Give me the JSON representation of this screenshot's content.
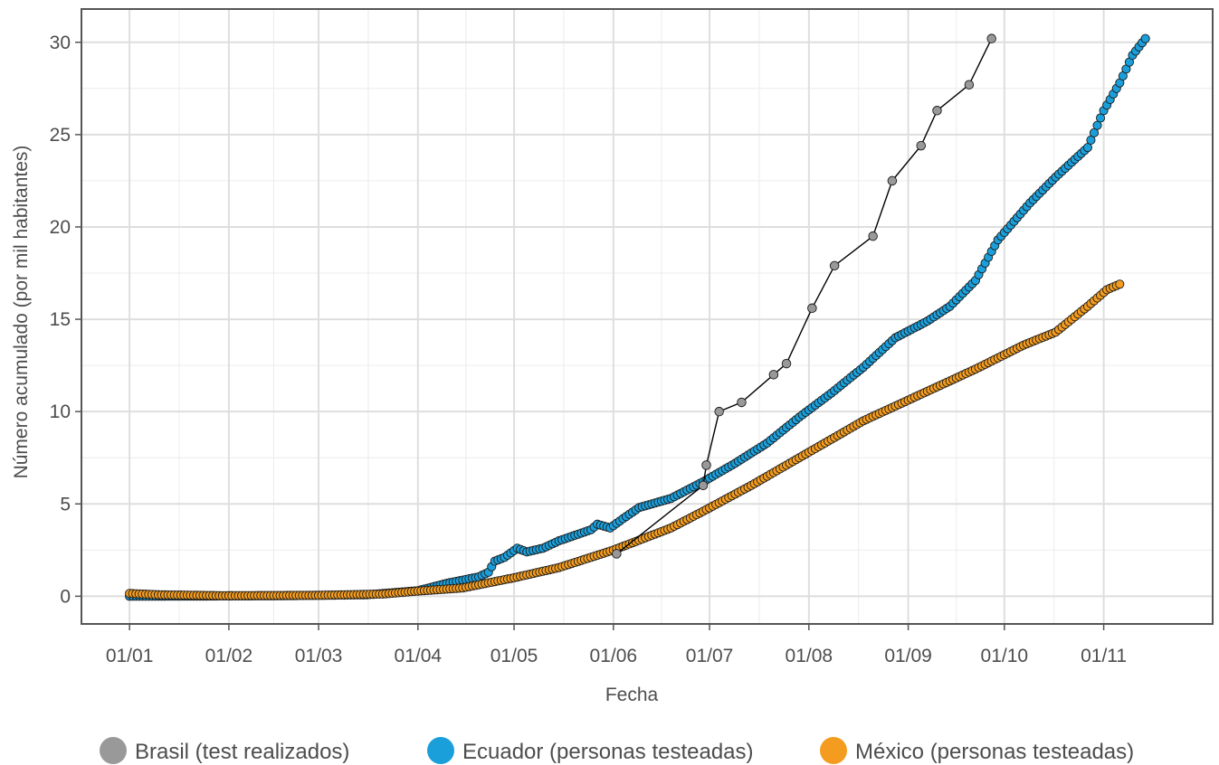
{
  "chart_data": {
    "type": "line",
    "xlabel": "Fecha",
    "ylabel": "Número acumulado (por mil habitantes)",
    "x_tick_labels": [
      "01/01",
      "01/02",
      "01/03",
      "01/04",
      "01/05",
      "01/06",
      "01/07",
      "01/08",
      "01/09",
      "01/10",
      "01/11"
    ],
    "x_tick_days": [
      1,
      32,
      60,
      91,
      121,
      152,
      182,
      213,
      244,
      274,
      305
    ],
    "x_unit": "day of year (2020)",
    "xlim": [
      -14,
      339
    ],
    "y_ticks": [
      0,
      5,
      10,
      15,
      20,
      25,
      30
    ],
    "y_tick_labels": [
      "0",
      "5",
      "10",
      "15",
      "20",
      "25",
      "30"
    ],
    "ylim": [
      -1.5,
      31.8
    ],
    "grid": true,
    "legend_position": "bottom",
    "series": [
      {
        "name": "Brasil (test realizados)",
        "color": "#999999",
        "style": "points-connected-by-line",
        "points": [
          [
            153,
            2.3
          ],
          [
            180,
            6.0
          ],
          [
            181,
            7.1
          ],
          [
            185,
            10.0
          ],
          [
            192,
            10.5
          ],
          [
            202,
            12.0
          ],
          [
            206,
            12.6
          ],
          [
            214,
            15.6
          ],
          [
            221,
            17.9
          ],
          [
            233,
            19.5
          ],
          [
            239,
            22.5
          ],
          [
            248,
            24.4
          ],
          [
            253,
            26.3
          ],
          [
            263,
            27.7
          ],
          [
            270,
            30.2
          ]
        ]
      },
      {
        "name": "Ecuador (personas testeadas)",
        "color": "#1b9fdb",
        "style": "daily-points",
        "start_day": 1,
        "end_day": 318,
        "key_points": [
          [
            1,
            0
          ],
          [
            45,
            0.02
          ],
          [
            75,
            0.08
          ],
          [
            91,
            0.3
          ],
          [
            100,
            0.7
          ],
          [
            110,
            1.05
          ],
          [
            113,
            1.3
          ],
          [
            115,
            1.9
          ],
          [
            118,
            2.1
          ],
          [
            122,
            2.6
          ],
          [
            125,
            2.4
          ],
          [
            130,
            2.6
          ],
          [
            135,
            3.0
          ],
          [
            145,
            3.6
          ],
          [
            147,
            3.9
          ],
          [
            151,
            3.7
          ],
          [
            155,
            4.2
          ],
          [
            160,
            4.8
          ],
          [
            170,
            5.3
          ],
          [
            180,
            6.2
          ],
          [
            190,
            7.2
          ],
          [
            200,
            8.3
          ],
          [
            210,
            9.7
          ],
          [
            220,
            11.0
          ],
          [
            230,
            12.4
          ],
          [
            240,
            14.0
          ],
          [
            250,
            14.9
          ],
          [
            257,
            15.7
          ],
          [
            265,
            17.1
          ],
          [
            272,
            19.3
          ],
          [
            282,
            21.3
          ],
          [
            290,
            22.7
          ],
          [
            300,
            24.3
          ],
          [
            305,
            26.3
          ],
          [
            310,
            27.8
          ],
          [
            314,
            29.3
          ],
          [
            318,
            30.2
          ]
        ]
      },
      {
        "name": "México (personas testeadas)",
        "color": "#f39c1f",
        "style": "daily-points",
        "start_day": 1,
        "end_day": 310,
        "key_points": [
          [
            1,
            0.15
          ],
          [
            10,
            0.08
          ],
          [
            30,
            0.03
          ],
          [
            60,
            0.05
          ],
          [
            80,
            0.12
          ],
          [
            91,
            0.28
          ],
          [
            105,
            0.45
          ],
          [
            121,
            1.0
          ],
          [
            135,
            1.55
          ],
          [
            152,
            2.5
          ],
          [
            170,
            3.7
          ],
          [
            180,
            4.6
          ],
          [
            195,
            6.0
          ],
          [
            213,
            7.8
          ],
          [
            230,
            9.5
          ],
          [
            245,
            10.7
          ],
          [
            265,
            12.3
          ],
          [
            280,
            13.6
          ],
          [
            290,
            14.3
          ],
          [
            300,
            15.7
          ],
          [
            306,
            16.6
          ],
          [
            310,
            16.9
          ]
        ]
      }
    ]
  }
}
